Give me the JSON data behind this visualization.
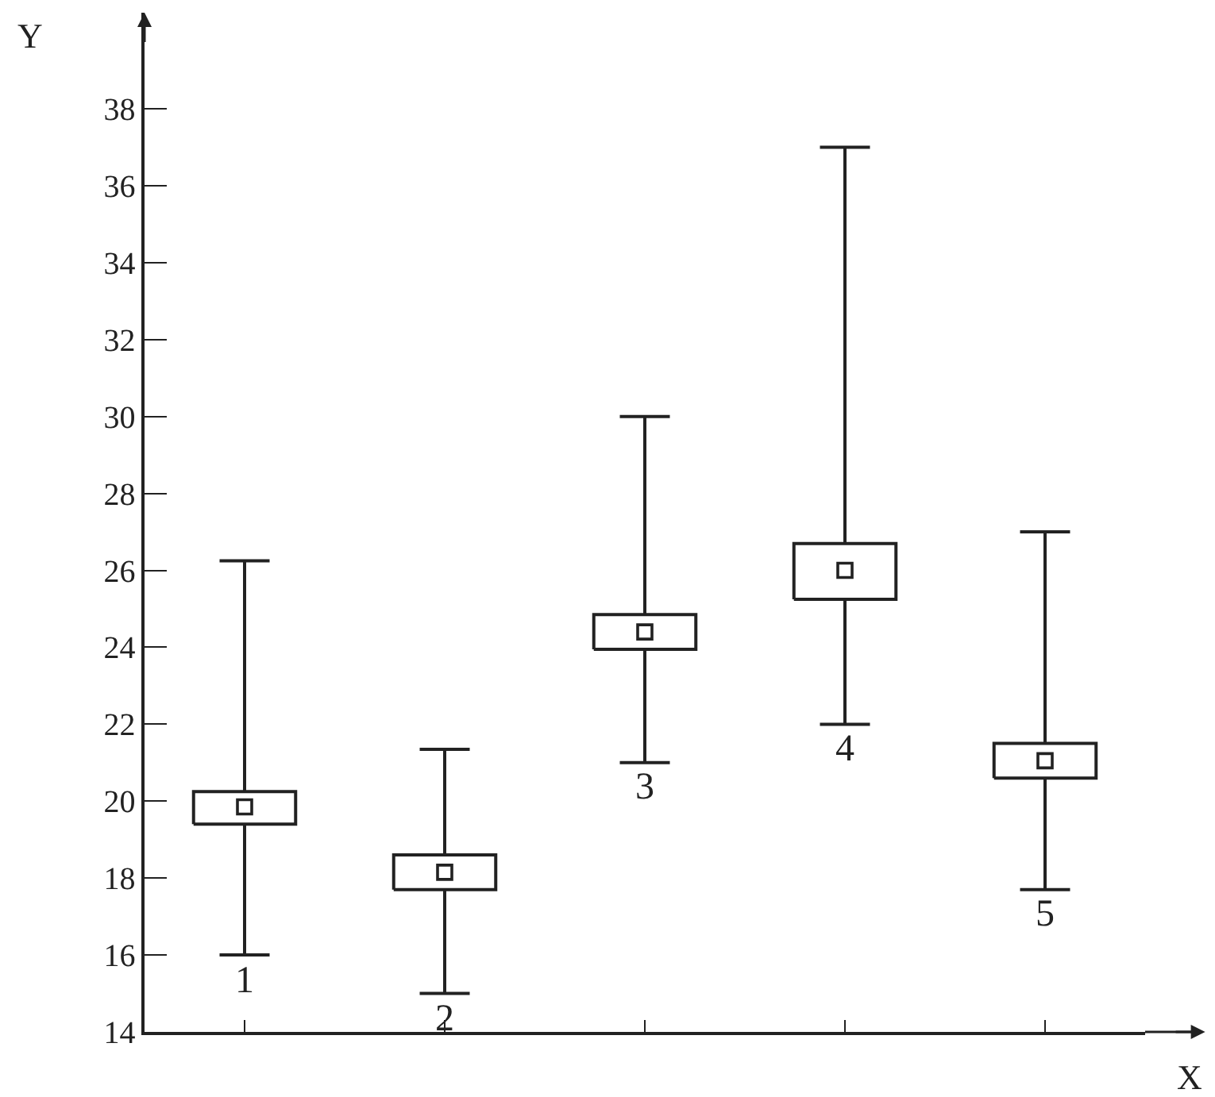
{
  "chart_data": {
    "type": "box",
    "xlabel": "X",
    "ylabel": "Y",
    "categories": [
      "1",
      "2",
      "3",
      "4",
      "5"
    ],
    "color": "#222222",
    "boxes": [
      {
        "low": 16.0,
        "q1": 19.4,
        "q3": 20.25,
        "high": 26.25,
        "mean": 19.85
      },
      {
        "low": 15.0,
        "q1": 17.7,
        "q3": 18.6,
        "high": 21.35,
        "mean": 18.15
      },
      {
        "low": 21.0,
        "q1": 23.95,
        "q3": 24.85,
        "high": 30.0,
        "mean": 24.4
      },
      {
        "low": 22.0,
        "q1": 25.25,
        "q3": 26.7,
        "high": 37.0,
        "mean": 26.0
      },
      {
        "low": 17.7,
        "q1": 20.6,
        "q3": 21.5,
        "high": 27.0,
        "mean": 21.05
      }
    ],
    "ylim": [
      14,
      40.5
    ],
    "yticks": [
      14,
      16,
      18,
      20,
      22,
      24,
      26,
      28,
      30,
      32,
      34,
      36,
      38
    ],
    "marker": "square"
  }
}
